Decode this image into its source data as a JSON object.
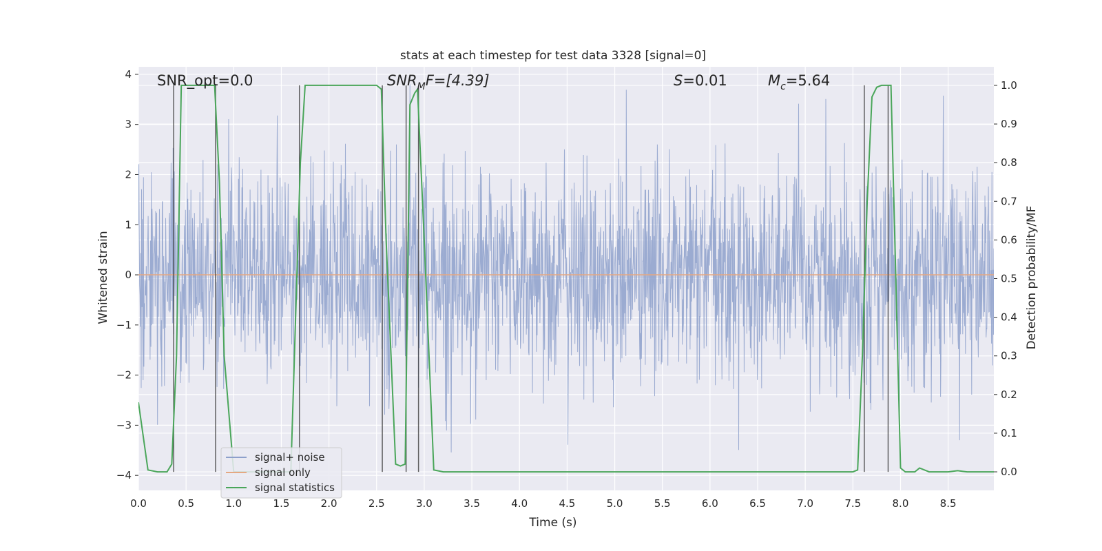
{
  "chart_data": {
    "type": "line",
    "title": "stats at each timestep for test data 3328 [signal=0]",
    "xlabel": "Time (s)",
    "ylabel": "Whitened strain",
    "y2label": "Detection probability/MF",
    "xlim": [
      0.0,
      8.98
    ],
    "ylim": [
      -4.3,
      4.15
    ],
    "y2lim": [
      -0.048,
      1.048
    ],
    "x_ticks": [
      "0.0",
      "0.5",
      "1.0",
      "1.5",
      "2.0",
      "2.5",
      "3.0",
      "3.5",
      "4.0",
      "4.5",
      "5.0",
      "5.5",
      "6.0",
      "6.5",
      "7.0",
      "7.5",
      "8.0",
      "8.5"
    ],
    "y_ticks": [
      "4",
      "3",
      "2",
      "1",
      "0",
      "−1",
      "−2",
      "−3",
      "−4"
    ],
    "y2_ticks": [
      "1.0",
      "0.9",
      "0.8",
      "0.7",
      "0.6",
      "0.5",
      "0.4",
      "0.3",
      "0.2",
      "0.1",
      "0.0"
    ],
    "grid": true,
    "legend_position": "lower-left",
    "annotations": {
      "snr_opt": "SNR_opt=0.0",
      "snr_mf_main": "SNR",
      "snr_mf_sub": "M",
      "snr_mf_rest": "F=[4.39]",
      "s_main": "S",
      "s_rest": "=0.01",
      "mc_main": "M",
      "mc_sub": "c",
      "mc_rest": "=5.64"
    },
    "series": [
      {
        "name": "signal+ noise",
        "color": "#8da0cb",
        "description_values": "white noise, approx. mean 0, spread between about -3.6 and 3.8"
      },
      {
        "name": "signal only",
        "color": "#e5a882",
        "x": [
          0.0,
          8.98
        ],
        "y": [
          0.0,
          0.0
        ]
      },
      {
        "name": "signal statistics",
        "color": "#4aa65a",
        "axis": "right",
        "x": [
          0.0,
          0.1,
          0.2,
          0.3,
          0.3,
          0.35,
          0.4,
          0.45,
          0.5,
          0.6,
          0.7,
          0.8,
          0.85,
          0.9,
          1.0,
          1.1,
          1.2,
          1.3,
          1.4,
          1.5,
          1.6,
          1.7,
          1.75,
          1.8,
          1.9,
          2.0,
          2.1,
          2.2,
          2.3,
          2.4,
          2.5,
          2.55,
          2.6,
          2.7,
          2.75,
          2.8,
          2.85,
          2.9,
          2.93,
          3.0,
          3.1,
          3.2,
          3.5,
          4.0,
          5.0,
          6.0,
          7.0,
          7.5,
          7.55,
          7.6,
          7.65,
          7.7,
          7.75,
          7.8,
          7.9,
          8.0,
          8.05,
          8.1,
          8.15,
          8.2,
          8.3,
          8.5,
          8.6,
          8.7,
          8.98
        ],
        "y": [
          0.18,
          0.005,
          0.0,
          0.0,
          0.0,
          0.02,
          0.3,
          1.0,
          1.0,
          1.0,
          1.0,
          1.0,
          0.75,
          0.3,
          0.0,
          0.0,
          0.0,
          0.0,
          0.0,
          0.0,
          0.0,
          0.8,
          1.0,
          1.0,
          1.0,
          1.0,
          1.0,
          1.0,
          1.0,
          1.0,
          1.0,
          0.99,
          0.6,
          0.02,
          0.015,
          0.02,
          0.95,
          0.98,
          0.99,
          0.6,
          0.005,
          0.0,
          0.0,
          0.0,
          0.0,
          0.0,
          0.0,
          0.0,
          0.005,
          0.3,
          0.7,
          0.97,
          0.995,
          1.0,
          1.0,
          0.01,
          0.0,
          0.0,
          0.0,
          0.01,
          0.0,
          0.0,
          0.003,
          0.0,
          0.0
        ]
      }
    ],
    "vertical_lines": [
      0.37,
      0.81,
      1.69,
      2.56,
      2.81,
      2.94,
      7.62,
      7.87
    ]
  }
}
